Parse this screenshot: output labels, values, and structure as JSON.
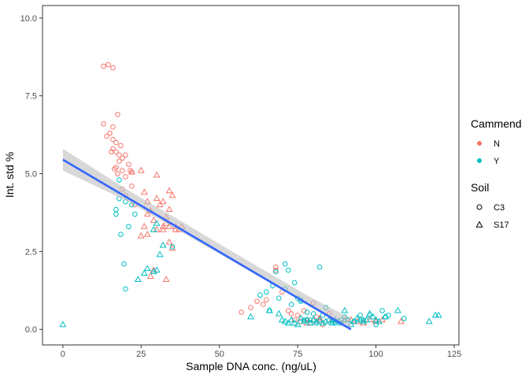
{
  "chart_data": {
    "type": "scatter",
    "xlabel": "Sample DNA conc. (ng/uL)",
    "ylabel": "Int. std %",
    "xlim": [
      -6.5,
      126.5
    ],
    "ylim": [
      -0.5,
      10.4
    ],
    "x_ticks": [
      0,
      25,
      50,
      75,
      100,
      125
    ],
    "x_tick_labels": [
      "0",
      "25",
      "50",
      "75",
      "100",
      "125"
    ],
    "y_ticks": [
      0,
      2.5,
      5,
      7.5,
      10
    ],
    "y_tick_labels": [
      "0.0",
      "2.5",
      "5.0",
      "7.5",
      "10.0"
    ],
    "grid": false,
    "legend_position": "right",
    "colors": {
      "N": "#F8766D",
      "Y": "#00BFC4",
      "fit": "#3366FF",
      "ribbon": "#BEBEBE"
    },
    "legend": {
      "color_title": "Cammend",
      "color_items": [
        {
          "label": "N",
          "key": "N"
        },
        {
          "label": "Y",
          "key": "Y"
        }
      ],
      "shape_title": "Soil",
      "shape_items": [
        {
          "label": "C3",
          "shape": "circle"
        },
        {
          "label": "S17",
          "shape": "triangle"
        }
      ]
    },
    "series": [
      {
        "cammend": "N",
        "soil": "C3",
        "points": [
          [
            13,
            8.45
          ],
          [
            14.5,
            8.5
          ],
          [
            16,
            8.4
          ],
          [
            13,
            6.6
          ],
          [
            14,
            6.2
          ],
          [
            15,
            6.3
          ],
          [
            16,
            6.5
          ],
          [
            16,
            6.1
          ],
          [
            17,
            6.0
          ],
          [
            17.5,
            6.9
          ],
          [
            15.5,
            5.7
          ],
          [
            16,
            5.8
          ],
          [
            17,
            5.7
          ],
          [
            18,
            5.6
          ],
          [
            18.5,
            5.9
          ],
          [
            19,
            5.5
          ],
          [
            20,
            5.6
          ],
          [
            21,
            5.3
          ],
          [
            17,
            5.2
          ],
          [
            18,
            5.4
          ],
          [
            19,
            5.1
          ],
          [
            16.5,
            5.15
          ],
          [
            17.5,
            5.0
          ],
          [
            20,
            4.9
          ],
          [
            21.5,
            5.1
          ],
          [
            22,
            5.05
          ],
          [
            19,
            4.5
          ],
          [
            20,
            4.3
          ],
          [
            22,
            4.6
          ],
          [
            23,
            4.0
          ],
          [
            57,
            0.55
          ],
          [
            60,
            0.7
          ],
          [
            62,
            0.9
          ],
          [
            64,
            0.8
          ],
          [
            65,
            0.95
          ],
          [
            68,
            1.9
          ],
          [
            68,
            2.0
          ],
          [
            70,
            1.2
          ],
          [
            72,
            0.6
          ],
          [
            73,
            0.5
          ],
          [
            74,
            0.3
          ],
          [
            75,
            0.45
          ],
          [
            76,
            0.25
          ],
          [
            77,
            0.6
          ],
          [
            78,
            0.3
          ],
          [
            79,
            0.2
          ],
          [
            80,
            0.85
          ],
          [
            81,
            0.4
          ],
          [
            82,
            0.25
          ],
          [
            83,
            0.15
          ],
          [
            85,
            0.5
          ],
          [
            86,
            0.3
          ]
        ]
      },
      {
        "cammend": "N",
        "soil": "S17",
        "points": [
          [
            22,
            5.05
          ],
          [
            25,
            5.1
          ],
          [
            26,
            4.4
          ],
          [
            27,
            4.1
          ],
          [
            28,
            3.8
          ],
          [
            29,
            3.5
          ],
          [
            30,
            3.2
          ],
          [
            30,
            4.2
          ],
          [
            31,
            4.0
          ],
          [
            32,
            4.1
          ],
          [
            33,
            3.6
          ],
          [
            34,
            3.3
          ],
          [
            34,
            4.45
          ],
          [
            35,
            4.3
          ],
          [
            36,
            3.3
          ],
          [
            30,
            4.95
          ],
          [
            27,
            3.7
          ],
          [
            26,
            3.3
          ],
          [
            25,
            3.0
          ],
          [
            27,
            3.05
          ],
          [
            33,
            3.4
          ],
          [
            32,
            3.3
          ],
          [
            32,
            3.2
          ],
          [
            34,
            3.85
          ],
          [
            34,
            2.8
          ],
          [
            35,
            2.6
          ],
          [
            36,
            3.2
          ],
          [
            37,
            3.2
          ],
          [
            38,
            3.3
          ],
          [
            28,
            1.7
          ],
          [
            33,
            1.6
          ],
          [
            29,
            1.9
          ],
          [
            78,
            0.2
          ],
          [
            80,
            0.3
          ],
          [
            82,
            0.35
          ],
          [
            84,
            0.25
          ],
          [
            86,
            0.3
          ],
          [
            88,
            0.25
          ],
          [
            90,
            0.3
          ],
          [
            92,
            0.3
          ],
          [
            94,
            0.25
          ],
          [
            96,
            0.2
          ],
          [
            98,
            0.3
          ],
          [
            100,
            0.25
          ],
          [
            102,
            0.3
          ],
          [
            108,
            0.25
          ]
        ]
      },
      {
        "cammend": "Y",
        "soil": "C3",
        "points": [
          [
            17,
            3.85
          ],
          [
            17,
            3.7
          ],
          [
            18,
            4.8
          ],
          [
            18,
            4.2
          ],
          [
            20,
            4.1
          ],
          [
            22,
            4.0
          ],
          [
            23,
            3.7
          ],
          [
            21,
            3.3
          ],
          [
            18.5,
            3.05
          ],
          [
            19.5,
            2.1
          ],
          [
            20,
            1.3
          ],
          [
            35,
            2.65
          ],
          [
            63,
            1.1
          ],
          [
            65,
            1.2
          ],
          [
            66,
            0.6
          ],
          [
            67,
            1.4
          ],
          [
            68,
            1.85
          ],
          [
            69,
            1.0
          ],
          [
            71,
            1.3
          ],
          [
            71,
            2.1
          ],
          [
            72,
            1.9
          ],
          [
            73,
            0.8
          ],
          [
            74,
            1.5
          ],
          [
            75,
            1.0
          ],
          [
            76,
            0.9
          ],
          [
            76,
            0.95
          ],
          [
            77,
            0.3
          ],
          [
            78,
            0.55
          ],
          [
            79,
            0.3
          ],
          [
            80,
            0.5
          ],
          [
            81,
            0.2
          ],
          [
            82,
            2.0
          ],
          [
            83,
            0.45
          ],
          [
            84,
            0.7
          ],
          [
            86,
            0.25
          ],
          [
            87,
            0.2
          ],
          [
            89,
            0.3
          ],
          [
            90,
            0.4
          ],
          [
            91,
            0.3
          ],
          [
            93,
            0.25
          ],
          [
            95,
            0.45
          ],
          [
            96,
            0.3
          ],
          [
            98,
            0.45
          ],
          [
            100,
            0.15
          ],
          [
            102,
            0.6
          ],
          [
            103,
            0.4
          ],
          [
            104,
            0.45
          ],
          [
            109,
            0.35
          ]
        ]
      },
      {
        "cammend": "Y",
        "soil": "S17",
        "points": [
          [
            0,
            0.15
          ],
          [
            24,
            1.6
          ],
          [
            26,
            1.8
          ],
          [
            27,
            1.95
          ],
          [
            29,
            1.85
          ],
          [
            30,
            1.9
          ],
          [
            30,
            3.4
          ],
          [
            31,
            2.4
          ],
          [
            32,
            2.7
          ],
          [
            29,
            3.2
          ],
          [
            60,
            0.4
          ],
          [
            66,
            0.6
          ],
          [
            69,
            0.5
          ],
          [
            70,
            0.3
          ],
          [
            71,
            0.25
          ],
          [
            72,
            0.2
          ],
          [
            73,
            0.3
          ],
          [
            74,
            0.2
          ],
          [
            75,
            0.15
          ],
          [
            76,
            0.35
          ],
          [
            77,
            0.25
          ],
          [
            78,
            0.3
          ],
          [
            79,
            0.2
          ],
          [
            80,
            0.3
          ],
          [
            81,
            0.25
          ],
          [
            82,
            0.3
          ],
          [
            83,
            0.2
          ],
          [
            84,
            0.25
          ],
          [
            85,
            0.3
          ],
          [
            86,
            0.2
          ],
          [
            87,
            0.3
          ],
          [
            88,
            0.25
          ],
          [
            89,
            0.2
          ],
          [
            90,
            0.6
          ],
          [
            91,
            0.3
          ],
          [
            92,
            0.15
          ],
          [
            93,
            0.25
          ],
          [
            94,
            0.35
          ],
          [
            95,
            0.3
          ],
          [
            96,
            0.25
          ],
          [
            97,
            0.3
          ],
          [
            98,
            0.5
          ],
          [
            99,
            0.4
          ],
          [
            100,
            0.3
          ],
          [
            101,
            0.25
          ],
          [
            103,
            0.4
          ],
          [
            107,
            0.6
          ],
          [
            117,
            0.25
          ],
          [
            119,
            0.45
          ],
          [
            120,
            0.45
          ]
        ]
      }
    ],
    "fit_line": {
      "x": [
        0,
        92
      ],
      "y": [
        5.45,
        0.0
      ]
    },
    "fit_band": {
      "x": [
        0,
        20,
        40,
        60,
        80,
        92
      ],
      "lower": [
        5.1,
        4.15,
        3.0,
        1.85,
        0.72,
        0.0
      ],
      "upper": [
        5.8,
        4.52,
        3.34,
        2.15,
        0.98,
        0.35
      ]
    }
  }
}
